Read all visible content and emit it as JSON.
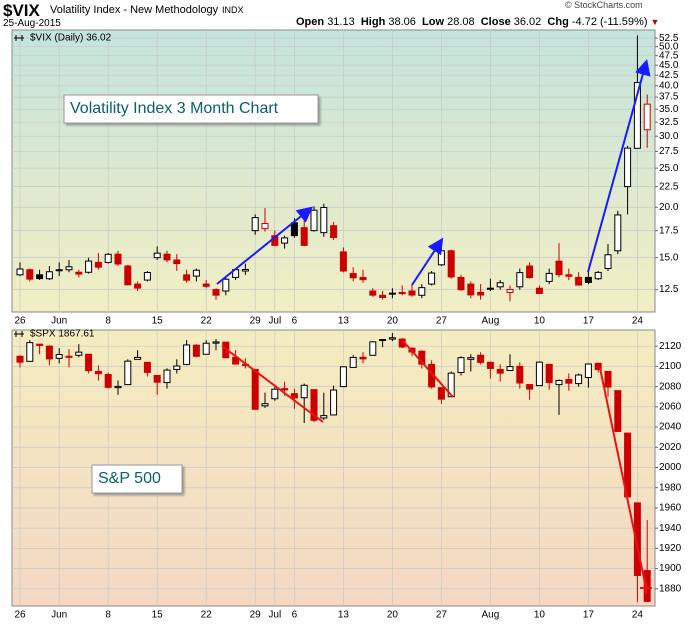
{
  "header": {
    "symbol": "$VIX",
    "name": "Volatility Index - New Methodology",
    "exchange": "INDX",
    "date": "25-Aug-2015",
    "open_label": "Open",
    "open": 31.13,
    "high_label": "High",
    "high": 38.06,
    "low_label": "Low",
    "low": 28.08,
    "close_label": "Close",
    "close": 36.02,
    "chg_label": "Chg",
    "chg": "-4.72 (-11.59%)",
    "copyright": "© StockCharts.com"
  },
  "chart_data": [
    {
      "type": "candlestick",
      "legend": "$VIX (Daily) 36.02",
      "annotation": "Volatility Index 3 Month Chart",
      "categories": [
        "26",
        null,
        null,
        null,
        "Jun",
        null,
        null,
        null,
        null,
        "8",
        null,
        null,
        null,
        null,
        "15",
        null,
        null,
        null,
        null,
        "22",
        null,
        null,
        null,
        null,
        "29",
        null,
        "Jul",
        null,
        "6",
        null,
        null,
        null,
        null,
        "13",
        null,
        null,
        null,
        null,
        "20",
        null,
        null,
        null,
        null,
        "27",
        null,
        null,
        null,
        null,
        "Aug",
        null,
        null,
        null,
        null,
        "10",
        null,
        null,
        null,
        null,
        "17",
        null,
        null,
        null,
        null,
        "24",
        null
      ],
      "open": [
        13.6,
        14.0,
        13.6,
        13.3,
        14.0,
        14.0,
        13.8,
        13.8,
        14.6,
        14.6,
        15.3,
        14.3,
        12.9,
        13.2,
        15.0,
        15.3,
        14.8,
        13.6,
        13.5,
        12.9,
        12.5,
        12.4,
        13.4,
        13.9,
        17.5,
        17.7,
        17.0,
        16.3,
        18.3,
        17.8,
        17.5,
        17.3,
        18.0,
        15.5,
        13.7,
        13.4,
        12.4,
        12.1,
        12.2,
        12.3,
        12.4,
        12.1,
        12.9,
        14.4,
        15.6,
        13.4,
        12.9,
        12.3,
        12.6,
        12.7,
        12.3,
        12.7,
        14.3,
        12.6,
        13.1,
        14.7,
        13.6,
        13.4,
        13.4,
        13.3,
        14.1,
        15.6,
        22.5,
        28.0,
        31.13
      ],
      "high": [
        14.6,
        14.1,
        14.0,
        14.3,
        14.6,
        14.8,
        14.0,
        15.0,
        15.4,
        15.4,
        15.6,
        14.4,
        13.1,
        13.9,
        16.0,
        15.6,
        15.3,
        14.0,
        14.1,
        13.2,
        12.6,
        13.4,
        14.1,
        14.5,
        19.2,
        19.9,
        17.5,
        17.0,
        18.8,
        19.6,
        20.1,
        20.4,
        18.4,
        15.9,
        14.2,
        14.0,
        12.6,
        12.4,
        12.6,
        12.8,
        12.9,
        12.9,
        13.9,
        16.3,
        15.7,
        13.6,
        13.1,
        12.9,
        13.3,
        13.2,
        12.8,
        14.1,
        14.6,
        12.8,
        14.1,
        16.3,
        14.1,
        13.8,
        13.9,
        13.9,
        16.2,
        19.6,
        28.4,
        53.3,
        38.06
      ],
      "low": [
        13.5,
        13.1,
        13.2,
        13.2,
        13.5,
        13.8,
        13.4,
        13.7,
        14.0,
        14.5,
        14.3,
        12.8,
        12.4,
        13.1,
        14.8,
        14.6,
        13.9,
        13.0,
        13.1,
        12.6,
        11.8,
        12.1,
        13.2,
        13.6,
        17.1,
        17.4,
        16.0,
        15.8,
        16.8,
        16.0,
        17.4,
        16.9,
        16.6,
        13.8,
        13.1,
        13.0,
        12.0,
        11.8,
        11.9,
        12.1,
        12.0,
        11.9,
        12.8,
        14.3,
        13.3,
        12.4,
        11.9,
        11.8,
        12.4,
        12.5,
        11.7,
        12.5,
        13.3,
        12.2,
        12.9,
        13.4,
        13.2,
        12.8,
        12.9,
        13.2,
        13.9,
        15.3,
        19.2,
        28.0,
        28.08
      ],
      "close": [
        14.06,
        13.27,
        13.31,
        13.84,
        13.97,
        14.24,
        13.66,
        14.71,
        14.21,
        15.29,
        14.47,
        12.85,
        12.61,
        13.78,
        15.39,
        14.81,
        14.5,
        13.19,
        13.96,
        12.74,
        12.11,
        13.26,
        14.01,
        14.02,
        18.85,
        18.23,
        16.09,
        16.79,
        17.01,
        16.09,
        19.66,
        19.97,
        16.83,
        13.9,
        13.37,
        13.23,
        12.11,
        11.95,
        12.25,
        12.22,
        12.12,
        12.64,
        13.74,
        15.6,
        13.44,
        12.5,
        12.13,
        12.12,
        12.56,
        13.0,
        12.51,
        13.77,
        13.39,
        12.23,
        13.71,
        13.61,
        13.49,
        12.83,
        13.02,
        13.79,
        15.25,
        19.14,
        28.03,
        40.74,
        36.02
      ],
      "up_color": "#000000",
      "down_color": "#cc0000",
      "log": true,
      "grid": true,
      "ylim": [
        11,
        55
      ],
      "yticks": [
        12.5,
        {
          "value": 15,
          "label": "15.0"
        },
        17.5,
        {
          "value": 20,
          "label": "20.0"
        },
        22.5,
        {
          "value": 25,
          "label": "25.0"
        },
        27.5,
        {
          "value": 30,
          "label": "30.0"
        },
        32.5,
        {
          "value": 35,
          "label": "35.0"
        },
        37.5,
        {
          "value": 40,
          "label": "40.0"
        },
        42.5,
        {
          "value": 45,
          "label": "45.0"
        },
        47.5,
        {
          "value": 50,
          "label": "50.0"
        },
        52.5
      ]
    },
    {
      "type": "candlestick",
      "legend": "$SPX 1867.61",
      "annotation": "S&P 500",
      "categories": [
        "26",
        null,
        null,
        null,
        "Jun",
        null,
        null,
        null,
        null,
        "8",
        null,
        null,
        null,
        null,
        "15",
        null,
        null,
        null,
        null,
        "22",
        null,
        null,
        null,
        null,
        "29",
        null,
        "Jul",
        null,
        "6",
        null,
        null,
        null,
        null,
        "13",
        null,
        null,
        null,
        null,
        "20",
        null,
        null,
        null,
        null,
        "27",
        null,
        null,
        null,
        null,
        "Aug",
        null,
        null,
        null,
        null,
        "10",
        null,
        null,
        null,
        null,
        "17",
        null,
        null,
        null,
        null,
        "24",
        null
      ],
      "open": [
        2110,
        2105,
        2122,
        2120,
        2108,
        2110,
        2111,
        2112,
        2095,
        2092,
        2079,
        2082,
        2107,
        2104,
        2091,
        2084,
        2097,
        2102,
        2121,
        2112,
        2123,
        2124,
        2109,
        2102,
        2097,
        2061,
        2068,
        2078,
        2073,
        2069,
        2077,
        2049,
        2052,
        2080,
        2099,
        2109,
        2111,
        2126,
        2127,
        2127,
        2118,
        2115,
        2102,
        2079,
        2070,
        2094,
        2107,
        2111,
        2104,
        2097,
        2096,
        2100,
        2082,
        2081,
        2102,
        2082,
        2087,
        2083,
        2089,
        2103,
        2095,
        2076,
        2034,
        1965,
        1898
      ],
      "high": [
        2111,
        2126,
        2122,
        2121,
        2118,
        2117,
        2122,
        2112,
        2101,
        2094,
        2086,
        2107,
        2116,
        2104,
        2091,
        2098,
        2107,
        2126,
        2122,
        2126,
        2127,
        2124,
        2116,
        2108,
        2097,
        2074,
        2082,
        2085,
        2078,
        2083,
        2077,
        2074,
        2081,
        2100,
        2111,
        2114,
        2125,
        2127,
        2133,
        2128,
        2119,
        2116,
        2106,
        2079,
        2095,
        2110,
        2112,
        2114,
        2105,
        2102,
        2112,
        2104,
        2082,
        2105,
        2102,
        2087,
        2093,
        2093,
        2103,
        2104,
        2095,
        2076,
        2034,
        1965,
        1948
      ],
      "low": [
        2099,
        2105,
        2112,
        2101,
        2103,
        2099,
        2109,
        2093,
        2086,
        2078,
        2072,
        2082,
        2107,
        2090,
        2072,
        2078,
        2093,
        2101,
        2109,
        2112,
        2116,
        2108,
        2102,
        2098,
        2057,
        2059,
        2066,
        2071,
        2058,
        2044,
        2045,
        2047,
        2052,
        2080,
        2099,
        2103,
        2111,
        2119,
        2125,
        2118,
        2110,
        2098,
        2078,
        2063,
        2070,
        2091,
        2095,
        2102,
        2088,
        2085,
        2096,
        2078,
        2067,
        2081,
        2077,
        2052,
        2076,
        2080,
        2079,
        2094,
        2070,
        2035,
        1970,
        1867,
        1867
      ],
      "close": [
        2104.2,
        2123.5,
        2120.8,
        2107.4,
        2111.7,
        2109.6,
        2114.1,
        2095.8,
        2092.8,
        2079.3,
        2080.2,
        2105.2,
        2108.9,
        2094.1,
        2084.4,
        2096.3,
        2100.4,
        2121.2,
        2110.0,
        2122.9,
        2124.2,
        2108.6,
        2102.3,
        2101.5,
        2057.6,
        2063.1,
        2077.4,
        2076.8,
        2068.8,
        2081.3,
        2046.7,
        2051.3,
        2076.6,
        2099.6,
        2108.9,
        2107.4,
        2124.3,
        2126.6,
        2128.3,
        2119.2,
        2114.2,
        2102.2,
        2079.7,
        2067.6,
        2093.3,
        2108.6,
        2108.6,
        2104.0,
        2098.0,
        2093.3,
        2099.8,
        2083.6,
        2077.6,
        2104.2,
        2084.1,
        2086.1,
        2083.4,
        2091.5,
        2102.4,
        2096.9,
        2079.6,
        2035.7,
        1970.9,
        1893.2,
        1867.61
      ],
      "up_color": "#000000",
      "down_color": "#cc0000",
      "log": false,
      "grid": true,
      "ylim": [
        1863,
        2136
      ],
      "yticks": [
        1880,
        1900,
        1920,
        1940,
        1960,
        1980,
        2000,
        2020,
        2040,
        2060,
        2080,
        2100,
        2120
      ]
    }
  ]
}
